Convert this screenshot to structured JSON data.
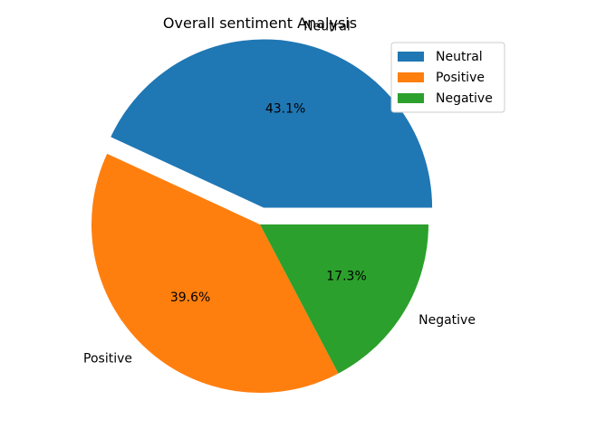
{
  "chart_data": {
    "type": "pie",
    "title": "Overall sentiment Analysis",
    "categories": [
      "Neutral",
      "Positive",
      "Negative"
    ],
    "values": [
      43.1,
      39.6,
      17.3
    ],
    "pct_labels": [
      "43.1%",
      "39.6%",
      "17.3%"
    ],
    "colors": [
      "#1f77b4",
      "#ff7f0e",
      "#2ca02c"
    ],
    "exploded": [
      "Neutral"
    ],
    "start_angle_deg": 0,
    "direction": "counterclockwise",
    "legend": {
      "placement": "top-right",
      "entries": [
        "Neutral",
        "Positive",
        "Negative"
      ]
    }
  }
}
